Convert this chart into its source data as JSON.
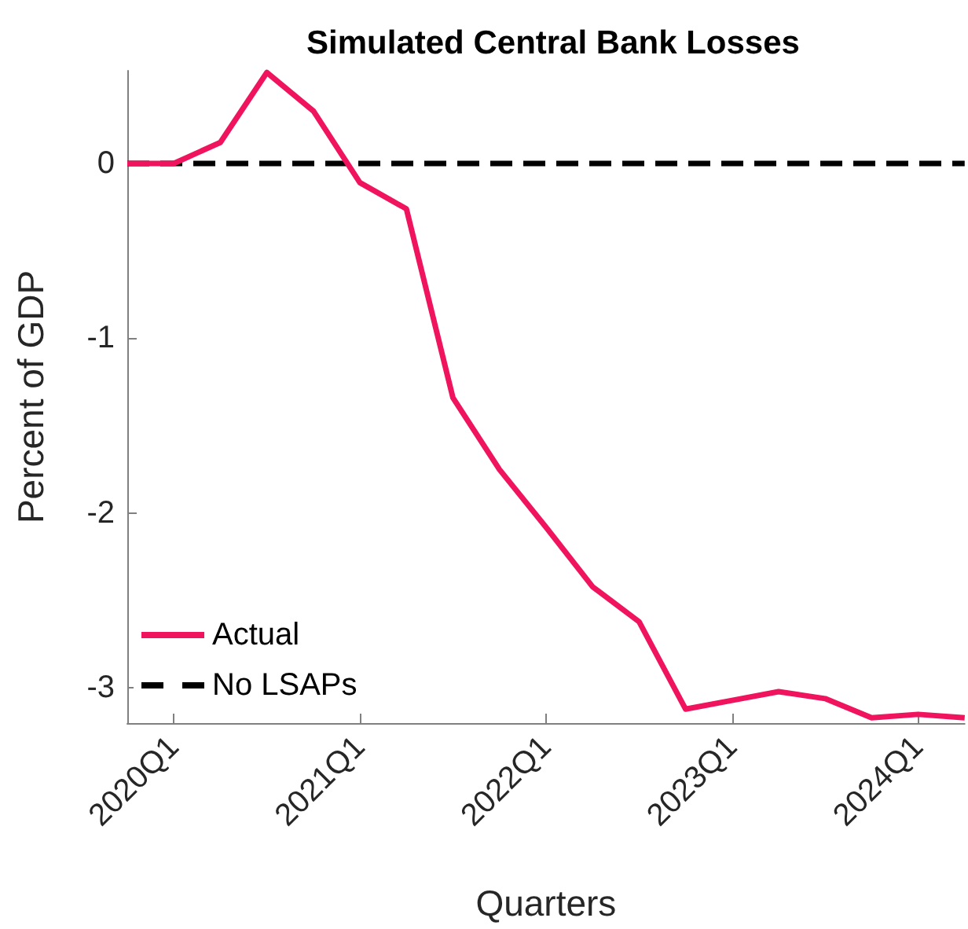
{
  "chart_data": {
    "type": "line",
    "title": "Simulated Central Bank Losses",
    "xlabel": "Quarters",
    "ylabel": "Percent of GDP",
    "categories": [
      null,
      "2020Q1",
      null,
      null,
      null,
      "2021Q1",
      null,
      null,
      null,
      "2022Q1",
      null,
      null,
      null,
      "2023Q1",
      null,
      null,
      null,
      "2024Q1",
      null
    ],
    "series": [
      {
        "name": "Actual",
        "color": "#f0145f",
        "line_style": "solid",
        "values": [
          0,
          0,
          0.12,
          0.52,
          0.3,
          -0.11,
          -0.26,
          -1.34,
          -1.75,
          -2.08,
          -2.42,
          -2.62,
          -3.12,
          -3.07,
          -3.02,
          -3.06,
          -3.17,
          -3.15,
          -3.17
        ]
      },
      {
        "name": "No LSAPs",
        "color": "#000000",
        "line_style": "dashed",
        "values": [
          0,
          0,
          0,
          0,
          0,
          0,
          0,
          0,
          0,
          0,
          0,
          0,
          0,
          0,
          0,
          0,
          0,
          0,
          0
        ]
      }
    ],
    "ylim": [
      -3.2,
      0.53
    ],
    "yticks": [
      0,
      -1,
      -2,
      -3
    ],
    "grid": false,
    "legend": "bottom left",
    "marker": "none"
  }
}
